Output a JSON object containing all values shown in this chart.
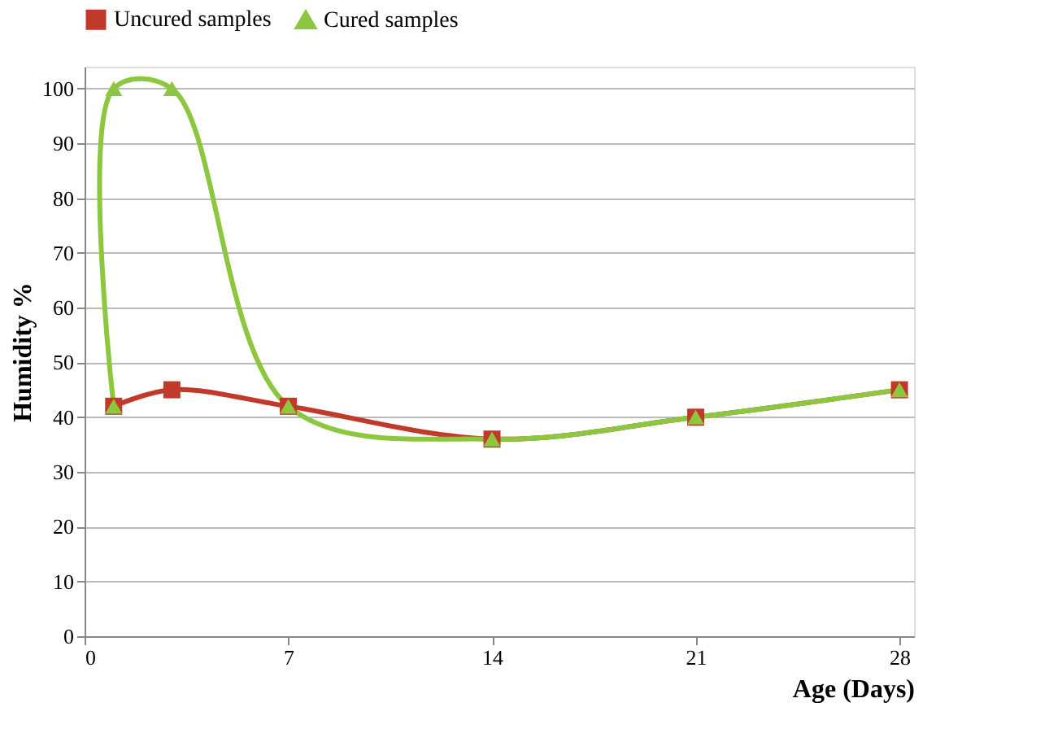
{
  "chart_data": {
    "type": "line",
    "xlabel": "Age (Days)",
    "ylabel": "Humidity %",
    "xlim": [
      0,
      28.5
    ],
    "xticks": [
      0,
      7,
      14,
      21,
      28
    ],
    "ylim": [
      0,
      104
    ],
    "yticks": [
      0,
      10,
      20,
      30,
      40,
      50,
      60,
      70,
      80,
      90,
      100
    ],
    "grid": "y",
    "legend": "top",
    "series": [
      {
        "name": "Uncured samples",
        "color": "#c0392b",
        "marker": "square",
        "x": [
          1,
          3,
          7,
          14,
          21,
          28
        ],
        "values": [
          42,
          45,
          42,
          36,
          40,
          45
        ]
      },
      {
        "name": "Cured samples",
        "color": "#8dc63f",
        "marker": "triangle",
        "x": [
          1,
          1,
          3,
          7,
          14,
          21,
          28
        ],
        "values": [
          42,
          100,
          100,
          42,
          36,
          40,
          45
        ]
      }
    ]
  }
}
